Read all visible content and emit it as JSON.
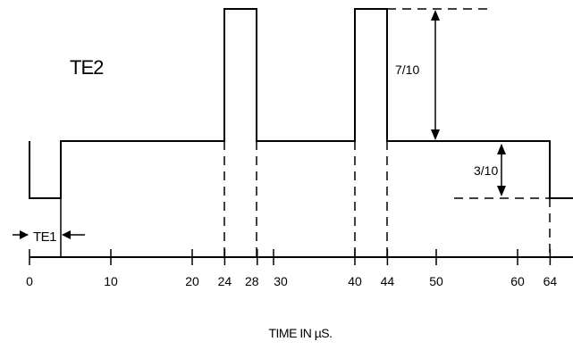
{
  "title": "TE2",
  "te1_label": "TE1",
  "amplitude_upper_label": "7/10",
  "amplitude_lower_label": "3/10",
  "axis_label": "TIME IN µS.",
  "ticks": [
    {
      "value": 0,
      "label": "0"
    },
    {
      "value": 10,
      "label": "10"
    },
    {
      "value": 20,
      "label": "20"
    },
    {
      "value": 24,
      "label": "24"
    },
    {
      "value": 28,
      "label": "28"
    },
    {
      "value": 30,
      "label": "30"
    },
    {
      "value": 40,
      "label": "40"
    },
    {
      "value": 44,
      "label": "44"
    },
    {
      "value": 50,
      "label": "50"
    },
    {
      "value": 60,
      "label": "60"
    },
    {
      "value": 64,
      "label": "64"
    }
  ]
}
